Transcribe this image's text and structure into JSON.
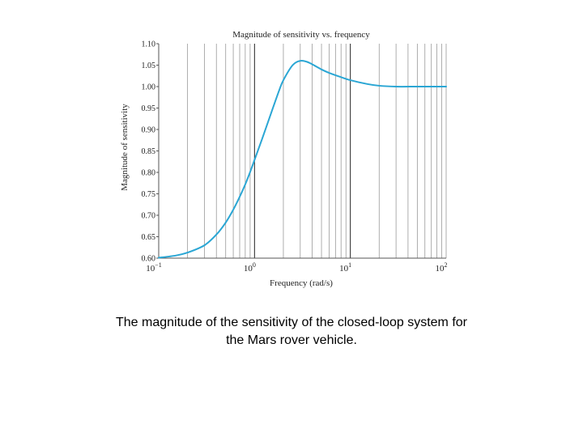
{
  "chart_data": {
    "type": "line",
    "title": "Magnitude of sensitivity vs. frequency",
    "xlabel": "Frequency (rad/s)",
    "ylabel": "Magnitude of sensitivity",
    "xscale": "log",
    "xlim": [
      0.1,
      100
    ],
    "ylim": [
      0.6,
      1.1
    ],
    "grid": true,
    "x_ticks": [
      {
        "value": 0.1,
        "mantissa": "10",
        "exp": "−1"
      },
      {
        "value": 1,
        "mantissa": "10",
        "exp": "0"
      },
      {
        "value": 10,
        "mantissa": "10",
        "exp": "1"
      },
      {
        "value": 100,
        "mantissa": "10",
        "exp": "2"
      }
    ],
    "y_ticks": [
      {
        "value": 0.6,
        "label": "0.60"
      },
      {
        "value": 0.65,
        "label": "0.65"
      },
      {
        "value": 0.7,
        "label": "0.70"
      },
      {
        "value": 0.75,
        "label": "0.75"
      },
      {
        "value": 0.8,
        "label": "0.80"
      },
      {
        "value": 0.85,
        "label": "0.85"
      },
      {
        "value": 0.9,
        "label": "0.90"
      },
      {
        "value": 0.95,
        "label": "0.95"
      },
      {
        "value": 1.0,
        "label": "1.00"
      },
      {
        "value": 1.05,
        "label": "1.05"
      },
      {
        "value": 1.1,
        "label": "1.10"
      }
    ],
    "series": [
      {
        "color": "#2aa6d4",
        "x": [
          0.1,
          0.15,
          0.2,
          0.3,
          0.4,
          0.5,
          0.6,
          0.7,
          0.8,
          0.9,
          1.0,
          1.2,
          1.5,
          1.8,
          2.0,
          2.5,
          3.0,
          3.5,
          4.0,
          5.0,
          6.0,
          8.0,
          10.0,
          15.0,
          20.0,
          30.0,
          50.0,
          100.0
        ],
        "y": [
          0.601,
          0.606,
          0.613,
          0.63,
          0.655,
          0.683,
          0.713,
          0.743,
          0.772,
          0.801,
          0.829,
          0.878,
          0.94,
          0.99,
          1.015,
          1.05,
          1.06,
          1.058,
          1.052,
          1.04,
          1.032,
          1.022,
          1.015,
          1.006,
          1.002,
          1.0,
          1.0,
          1.0
        ]
      }
    ]
  },
  "caption": {
    "line1": "The magnitude of the sensitivity of the closed-loop system for",
    "line2": "the Mars rover vehicle."
  }
}
